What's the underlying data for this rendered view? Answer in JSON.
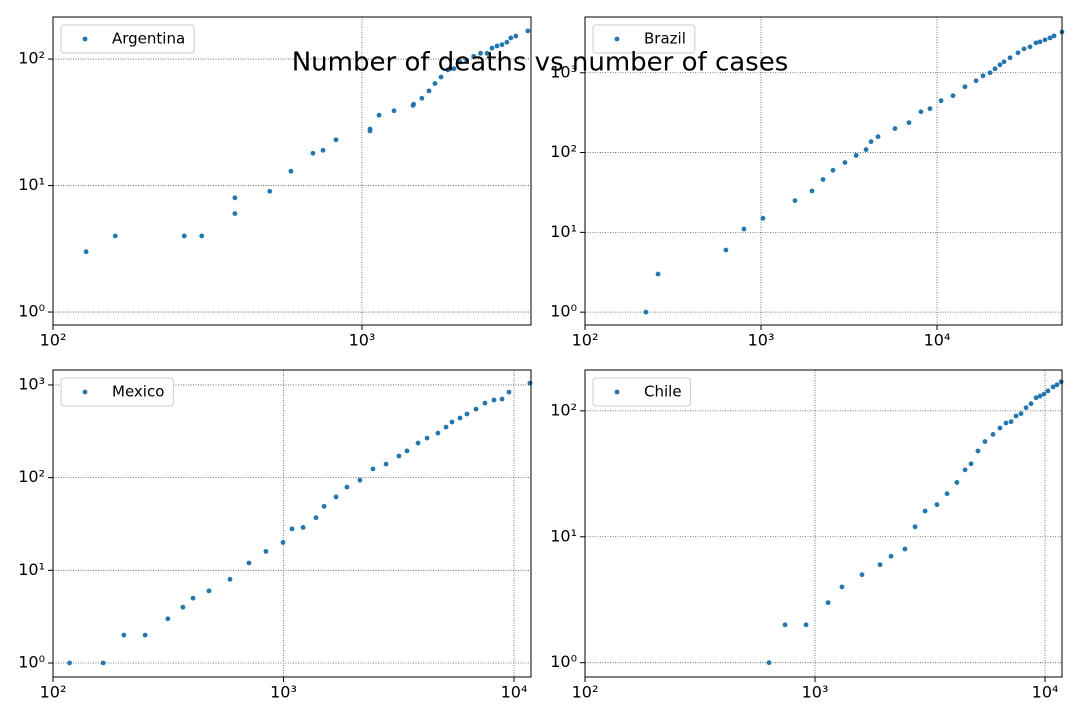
{
  "title": "Number of deaths vs number of cases",
  "chart_data": [
    {
      "type": "scatter",
      "xscale": "log",
      "yscale": "log",
      "grid": true,
      "legend": "upper left",
      "xlim": [
        100,
        3525
      ],
      "ylim": [
        0.79,
        215
      ],
      "xticks": [
        {
          "value": 100,
          "label": "10²"
        },
        {
          "value": 1000,
          "label": "10³"
        }
      ],
      "yticks": [
        {
          "value": 1,
          "label": "10⁰"
        },
        {
          "value": 10,
          "label": "10¹"
        },
        {
          "value": 100,
          "label": "10²"
        }
      ],
      "x": [
        128,
        159,
        266,
        303,
        388,
        388,
        503,
        589,
        694,
        748,
        824,
        1062,
        1062,
        1136,
        1270,
        1463,
        1470,
        1563,
        1648,
        1723,
        1803,
        1897,
        1985,
        2077,
        2180,
        2300,
        2420,
        2540,
        2637,
        2736,
        2840,
        2945,
        3033,
        3148,
        3443
      ],
      "series": [
        {
          "name": "Argentina",
          "color": "#1f77b4",
          "values": [
            3,
            4,
            4,
            4,
            6,
            8,
            9,
            13,
            18,
            19,
            23,
            27,
            28,
            36,
            39,
            43,
            44,
            49,
            56,
            64,
            72,
            82,
            84,
            95,
            98,
            105,
            111,
            111,
            122,
            127,
            130,
            136,
            147,
            152,
            167
          ]
        }
      ]
    },
    {
      "type": "scatter",
      "xscale": "log",
      "yscale": "log",
      "grid": true,
      "legend": "upper left",
      "xlim": [
        100,
        51300
      ],
      "ylim": [
        0.69,
        5000
      ],
      "xticks": [
        {
          "value": 100,
          "label": "10²"
        },
        {
          "value": 1000,
          "label": "10³"
        },
        {
          "value": 10000,
          "label": "10⁴"
        }
      ],
      "yticks": [
        {
          "value": 1,
          "label": "10⁰"
        },
        {
          "value": 10,
          "label": "10¹"
        },
        {
          "value": 100,
          "label": "10²"
        },
        {
          "value": 1000,
          "label": "10³"
        }
      ],
      "x": [
        222,
        260,
        632,
        800,
        1025,
        1560,
        1950,
        2250,
        2565,
        3000,
        3467,
        3953,
        4220,
        4620,
        5770,
        6930,
        8110,
        9120,
        10540,
        12330,
        14420,
        16670,
        18250,
        20000,
        21370,
        22800,
        24040,
        26000,
        28850,
        31200,
        33750,
        36540,
        38480,
        41100,
        43870,
        46240,
        51300
      ],
      "series": [
        {
          "name": "Brazil",
          "color": "#1f77b4",
          "values": [
            1,
            3,
            6,
            11,
            15,
            25,
            33,
            46,
            60,
            75,
            92,
            109,
            137,
            158,
            200,
            237,
            325,
            355,
            447,
            516,
            668,
            794,
            917,
            1000,
            1122,
            1259,
            1373,
            1540,
            1778,
            1995,
            2113,
            2371,
            2441,
            2585,
            2738,
            2900,
            3254
          ]
        }
      ]
    },
    {
      "type": "scatter",
      "xscale": "log",
      "yscale": "log",
      "grid": true,
      "legend": "upper left",
      "xlim": [
        100,
        11850
      ],
      "ylim": [
        0.706,
        1450
      ],
      "xticks": [
        {
          "value": 100,
          "label": "10²"
        },
        {
          "value": 1000,
          "label": "10³"
        },
        {
          "value": 10000,
          "label": "10⁴"
        }
      ],
      "yticks": [
        {
          "value": 1,
          "label": "10⁰"
        },
        {
          "value": 10,
          "label": "10¹"
        },
        {
          "value": 100,
          "label": "10²"
        },
        {
          "value": 1000,
          "label": "10³"
        }
      ],
      "x": [
        118,
        165,
        203,
        251,
        315,
        366,
        405,
        475,
        586,
        708,
        839,
        995,
        1089,
        1216,
        1384,
        1500,
        1690,
        1885,
        2146,
        2443,
        2785,
        3170,
        3433,
        3834,
        4196,
        4677,
        5070,
        5383,
        5832,
        6250,
        6840,
        7480,
        8190,
        8870,
        9510,
        11730
      ],
      "series": [
        {
          "name": "Mexico",
          "color": "#1f77b4",
          "values": [
            1,
            1,
            2,
            2,
            3,
            4,
            5,
            6,
            8,
            12,
            16,
            20,
            28,
            29,
            37,
            49,
            62,
            79,
            94,
            124,
            140,
            171,
            194,
            236,
            267,
            303,
            351,
            398,
            440,
            486,
            549,
            638,
            687,
            705,
            837,
            1047
          ]
        }
      ]
    },
    {
      "type": "scatter",
      "xscale": "log",
      "yscale": "log",
      "grid": true,
      "legend": "upper left",
      "xlim": [
        100,
        11850
      ],
      "ylim": [
        0.77,
        211
      ],
      "xticks": [
        {
          "value": 100,
          "label": "10²"
        },
        {
          "value": 1000,
          "label": "10³"
        },
        {
          "value": 10000,
          "label": "10⁴"
        }
      ],
      "yticks": [
        {
          "value": 1,
          "label": "10⁰"
        },
        {
          "value": 10,
          "label": "10¹"
        },
        {
          "value": 100,
          "label": "10²"
        }
      ],
      "x": [
        631,
        741,
        914,
        1140,
        1310,
        1600,
        1918,
        2140,
        2460,
        2722,
        3010,
        3390,
        3750,
        4140,
        4490,
        4770,
        5110,
        5480,
        5940,
        6370,
        6770,
        7120,
        7480,
        7860,
        8270,
        8690,
        9140,
        9510,
        9900,
        10300,
        10840,
        11270,
        11750
      ],
      "series": [
        {
          "name": "Chile",
          "color": "#1f77b4",
          "values": [
            1,
            2,
            2,
            3,
            4,
            5,
            6,
            7,
            8,
            12,
            16,
            18,
            22,
            27,
            34,
            38,
            48,
            57,
            65,
            73,
            80,
            82,
            91,
            95,
            106,
            114,
            127,
            131,
            136,
            144,
            155,
            161,
            170
          ]
        }
      ]
    }
  ]
}
